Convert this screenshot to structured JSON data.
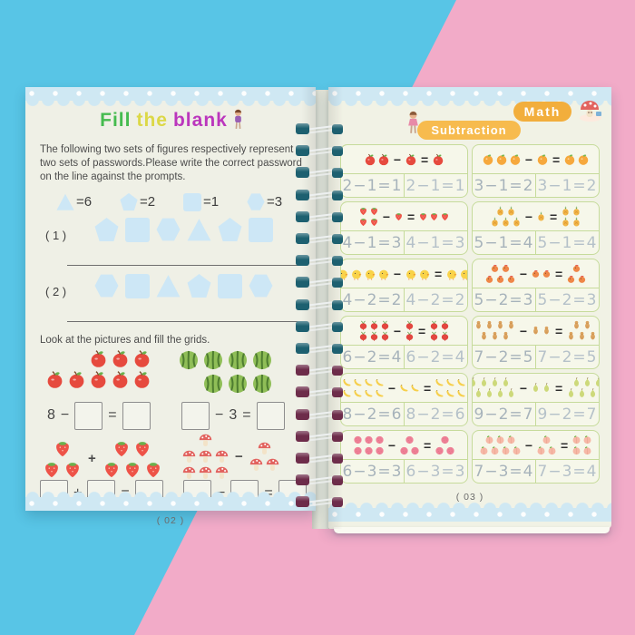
{
  "colors": {
    "bg_blue": "#58c5e6",
    "bg_pink": "#f2abc8",
    "band_blue": "#cfe8f3",
    "page_cream": "#eff0e6",
    "shape_blue": "#cde7f6",
    "badge_orange": "#f2ae3c",
    "pill_orange": "#f7bb4e",
    "table_green": "#c6db9b",
    "trace_gray": "#b5c1c9",
    "ring_teal": "#1d6070",
    "ring_maroon": "#6d2c4a"
  },
  "book": {
    "spiral_ring_count": 18
  },
  "left_page": {
    "title": [
      {
        "text": "Fill",
        "color": "#45bb4f"
      },
      {
        "text": "the",
        "color": "#dcd847"
      },
      {
        "text": "blank",
        "color": "#bb36bd"
      }
    ],
    "intro": "The following two sets of figures respectively represent two sets of passwords.Please write the correct password on the line against the prompts.",
    "legend": [
      {
        "shape": "triangle",
        "value": "=6"
      },
      {
        "shape": "pentagon",
        "value": "=2"
      },
      {
        "shape": "square",
        "value": "=1"
      },
      {
        "shape": "hexagon",
        "value": "=3"
      }
    ],
    "password_rows": [
      {
        "label": "( 1 )",
        "shapes": [
          "pentagon",
          "square",
          "hexagon",
          "triangle",
          "pentagon",
          "square"
        ]
      },
      {
        "label": "( 2 )",
        "shapes": [
          "hexagon",
          "square",
          "triangle",
          "pentagon",
          "square",
          "hexagon"
        ]
      }
    ],
    "look_text": "Look at the pictures and fill the grids.",
    "picture_problems": [
      {
        "fruit": "apple",
        "rows": [
          3,
          5
        ],
        "equation": [
          "8",
          "−",
          "□",
          "=",
          "□"
        ]
      },
      {
        "fruit": "watermelon",
        "rows": [
          4,
          3
        ],
        "equation": [
          "□",
          "−",
          "3",
          "=",
          "□"
        ]
      },
      {
        "fruit": "strawberry",
        "clusters": [
          [
            1,
            2
          ],
          [
            2,
            3
          ]
        ],
        "operator": "+",
        "equation": [
          "□",
          "+",
          "□",
          "=",
          "□"
        ]
      },
      {
        "fruit": "mushroom",
        "clusters": [
          [
            1,
            3,
            3
          ],
          [
            1,
            2
          ]
        ],
        "operator": "−",
        "equation": [
          "□",
          "−",
          "□",
          "=",
          "□"
        ]
      }
    ],
    "page_number": "( 02 )"
  },
  "right_page": {
    "badge_label": "Math",
    "header_label": "Subtraction",
    "problems": [
      {
        "fruit": "apple",
        "minuend": 2,
        "subtrahend": 1,
        "difference": 1,
        "m": [
          2
        ],
        "s": [
          1
        ],
        "d": [
          1
        ],
        "trace": "2−1=1"
      },
      {
        "fruit": "orange",
        "minuend": 3,
        "subtrahend": 1,
        "difference": 2,
        "m": [
          3
        ],
        "s": [
          1
        ],
        "d": [
          2
        ],
        "trace": "3−1=2"
      },
      {
        "fruit": "strawberry",
        "minuend": 4,
        "subtrahend": 1,
        "difference": 3,
        "m": [
          2,
          2
        ],
        "s": [
          1
        ],
        "d": [
          3
        ],
        "trace": "4−1=3"
      },
      {
        "fruit": "pineapple",
        "minuend": 5,
        "subtrahend": 1,
        "difference": 4,
        "m": [
          2,
          3
        ],
        "s": [
          1
        ],
        "d": [
          2,
          2
        ],
        "trace": "5−1=4"
      },
      {
        "fruit": "chick",
        "minuend": 4,
        "subtrahend": 2,
        "difference": 2,
        "m": [
          4
        ],
        "s": [
          2
        ],
        "d": [
          2
        ],
        "trace": "4−2=2"
      },
      {
        "fruit": "chicken",
        "minuend": 5,
        "subtrahend": 2,
        "difference": 3,
        "m": [
          2,
          3
        ],
        "s": [
          2
        ],
        "d": [
          1,
          2
        ],
        "trace": "5−2=3"
      },
      {
        "fruit": "radish",
        "minuend": 6,
        "subtrahend": 2,
        "difference": 4,
        "m": [
          3,
          3
        ],
        "s": [
          1,
          1
        ],
        "d": [
          2,
          2
        ],
        "trace": "6−2=4"
      },
      {
        "fruit": "peanut",
        "minuend": 7,
        "subtrahend": 2,
        "difference": 5,
        "m": [
          4,
          3
        ],
        "s": [
          2
        ],
        "d": [
          2,
          3
        ],
        "trace": "7−2=5"
      },
      {
        "fruit": "banana",
        "minuend": 8,
        "subtrahend": 2,
        "difference": 6,
        "m": [
          4,
          4
        ],
        "s": [
          2
        ],
        "d": [
          3,
          3
        ],
        "trace": "8−2=6"
      },
      {
        "fruit": "pear",
        "minuend": 9,
        "subtrahend": 2,
        "difference": 7,
        "m": [
          4,
          5
        ],
        "s": [
          2
        ],
        "d": [
          3,
          4
        ],
        "trace": "9−2=7"
      },
      {
        "fruit": "lychee",
        "minuend": 6,
        "subtrahend": 3,
        "difference": 3,
        "m": [
          3,
          3
        ],
        "s": [
          1,
          2
        ],
        "d": [
          1,
          2
        ],
        "trace": "6−3=3"
      },
      {
        "fruit": "peach",
        "minuend": 7,
        "subtrahend": 3,
        "difference": 4,
        "m": [
          3,
          4
        ],
        "s": [
          1,
          2
        ],
        "d": [
          2,
          2
        ],
        "trace": "7−3=4"
      }
    ],
    "page_number": "( 03 )"
  }
}
